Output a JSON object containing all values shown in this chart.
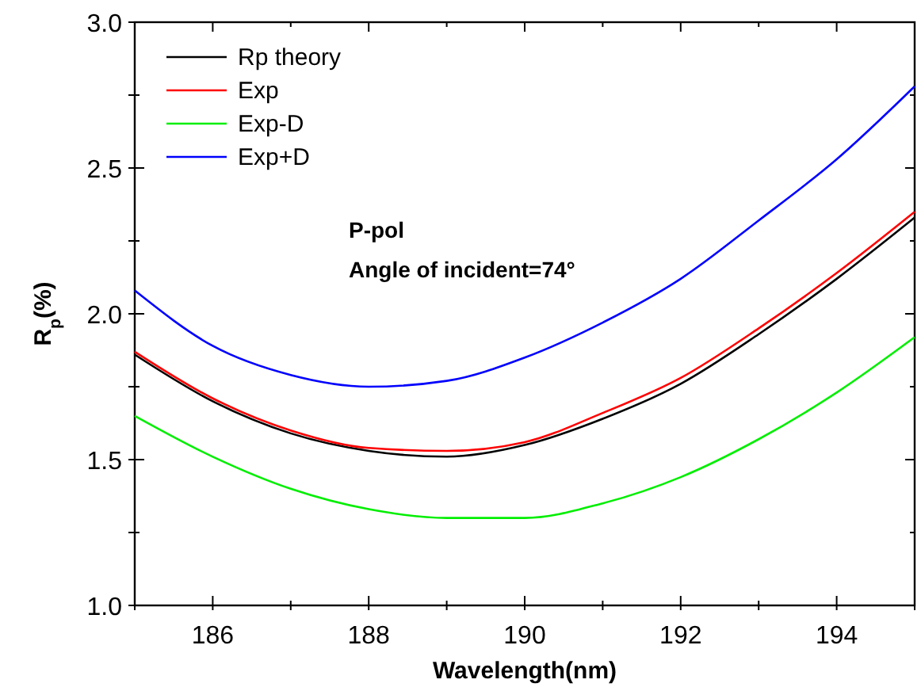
{
  "chart_data": {
    "type": "line",
    "xlabel": "Wavelength(nm)",
    "ylabel": "R$_{p}$(%)",
    "x": [
      185,
      186,
      187,
      188,
      189,
      190,
      191,
      192,
      193,
      194,
      195
    ],
    "series": [
      {
        "name": "Rp theory",
        "color": "#000000",
        "values": [
          1.86,
          1.7,
          1.59,
          1.53,
          1.51,
          1.55,
          1.64,
          1.76,
          1.93,
          2.12,
          2.33
        ]
      },
      {
        "name": "Exp",
        "color": "#ff0000",
        "values": [
          1.87,
          1.71,
          1.6,
          1.54,
          1.53,
          1.56,
          1.66,
          1.78,
          1.95,
          2.14,
          2.35
        ]
      },
      {
        "name": "Exp-D",
        "color": "#00ee00",
        "values": [
          1.65,
          1.51,
          1.4,
          1.33,
          1.3,
          1.3,
          1.35,
          1.44,
          1.57,
          1.73,
          1.92
        ]
      },
      {
        "name": "Exp+D",
        "color": "#0000ff",
        "values": [
          2.08,
          1.89,
          1.79,
          1.75,
          1.77,
          1.85,
          1.97,
          2.12,
          2.32,
          2.53,
          2.78
        ]
      }
    ],
    "xlim": [
      185,
      195
    ],
    "xticks": [
      {
        "value": 185,
        "label": null
      },
      186,
      {
        "value": 187,
        "label": null
      },
      188,
      {
        "value": 189,
        "label": null
      },
      190,
      {
        "value": 191,
        "label": null
      },
      192,
      {
        "value": 193,
        "label": null
      },
      194,
      {
        "value": 195,
        "label": null
      }
    ],
    "ylim": [
      1.0,
      3.0
    ],
    "yticks": [
      {
        "value": 1.0,
        "label": "1.0"
      },
      {
        "value": 1.25,
        "label": null
      },
      1.5,
      {
        "value": 1.75,
        "label": null
      },
      {
        "value": 2.0,
        "label": "2.0"
      },
      {
        "value": 2.25,
        "label": null
      },
      2.5,
      {
        "value": 2.75,
        "label": null
      },
      {
        "value": 3.0,
        "label": "3.0"
      }
    ],
    "annotations": [
      "P-pol",
      "Angle of incident=74°"
    ],
    "legend": "top left",
    "grid": false,
    "marker": "none",
    "line_style": "solid"
  }
}
